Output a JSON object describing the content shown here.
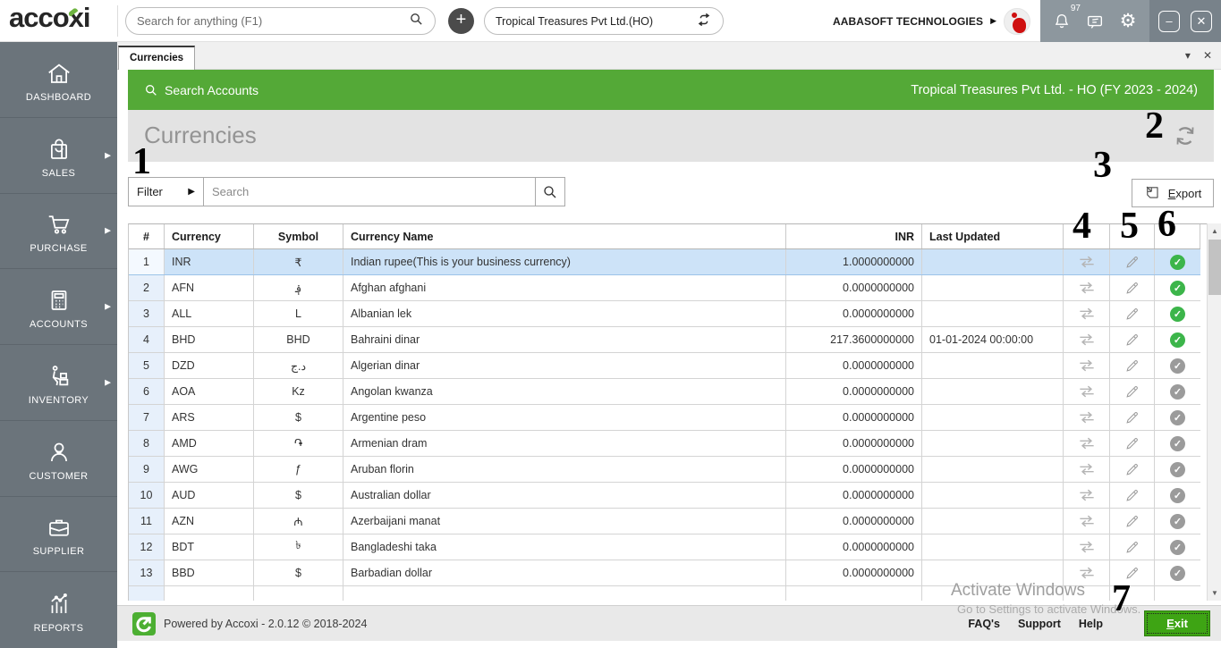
{
  "topbar": {
    "logo": "accoxi",
    "search_placeholder": "Search for anything (F1)",
    "add_label": "+",
    "company_selector": "Tropical Treasures Pvt Ltd.(HO)",
    "org_name": "AABASOFT TECHNOLOGIES",
    "notification_count": "97",
    "minimize_label": "–",
    "close_label": "✕"
  },
  "sidebar": {
    "items": [
      {
        "label": "DASHBOARD",
        "icon": "home-icon",
        "arrow": false
      },
      {
        "label": "SALES",
        "icon": "sales-bag-icon",
        "arrow": true
      },
      {
        "label": "PURCHASE",
        "icon": "purchase-cart-icon",
        "arrow": true
      },
      {
        "label": "ACCOUNTS",
        "icon": "accounts-calculator-icon",
        "arrow": true
      },
      {
        "label": "INVENTORY",
        "icon": "inventory-trolley-icon",
        "arrow": true
      },
      {
        "label": "CUSTOMER",
        "icon": "customer-person-icon",
        "arrow": false
      },
      {
        "label": "SUPPLIER",
        "icon": "supplier-briefcase-icon",
        "arrow": false
      },
      {
        "label": "REPORTS",
        "icon": "reports-chart-icon",
        "arrow": false
      }
    ]
  },
  "tabbar": {
    "active_tab": "Currencies",
    "dropdown_icon": "▾",
    "close_icon": "✕"
  },
  "accounts_bar": {
    "search_label": "Search Accounts",
    "company_label": "Tropical Treasures Pvt Ltd. - HO (FY 2023 - 2024)"
  },
  "page": {
    "title": "Currencies"
  },
  "toolbar": {
    "filter_label": "Filter",
    "filter_arrow": "▶",
    "search_placeholder": "Search",
    "export_label": "Export"
  },
  "table": {
    "headers": {
      "num": "#",
      "code": "Currency",
      "sym": "Symbol",
      "name": "Currency Name",
      "inr": "INR",
      "upd": "Last Updated"
    },
    "rows": [
      {
        "num": "1",
        "code": "INR",
        "sym": "₹",
        "name": "Indian rupee(This is your business currency)",
        "inr": "1.0000000000",
        "upd": "",
        "active": true,
        "selected": true
      },
      {
        "num": "2",
        "code": "AFN",
        "sym": "؋",
        "name": "Afghan afghani",
        "inr": "0.0000000000",
        "upd": "",
        "active": true,
        "selected": false
      },
      {
        "num": "3",
        "code": "ALL",
        "sym": "L",
        "name": "Albanian lek",
        "inr": "0.0000000000",
        "upd": "",
        "active": true,
        "selected": false
      },
      {
        "num": "4",
        "code": "BHD",
        "sym": "BHD",
        "name": "Bahraini dinar",
        "inr": "217.3600000000",
        "upd": "01-01-2024 00:00:00",
        "active": true,
        "selected": false
      },
      {
        "num": "5",
        "code": "DZD",
        "sym": "د.ج",
        "name": "Algerian dinar",
        "inr": "0.0000000000",
        "upd": "",
        "active": false,
        "selected": false
      },
      {
        "num": "6",
        "code": "AOA",
        "sym": "Kz",
        "name": "Angolan kwanza",
        "inr": "0.0000000000",
        "upd": "",
        "active": false,
        "selected": false
      },
      {
        "num": "7",
        "code": "ARS",
        "sym": "$",
        "name": "Argentine peso",
        "inr": "0.0000000000",
        "upd": "",
        "active": false,
        "selected": false
      },
      {
        "num": "8",
        "code": "AMD",
        "sym": "֏",
        "name": "Armenian dram",
        "inr": "0.0000000000",
        "upd": "",
        "active": false,
        "selected": false
      },
      {
        "num": "9",
        "code": "AWG",
        "sym": "ƒ",
        "name": "Aruban florin",
        "inr": "0.0000000000",
        "upd": "",
        "active": false,
        "selected": false
      },
      {
        "num": "10",
        "code": "AUD",
        "sym": "$",
        "name": "Australian dollar",
        "inr": "0.0000000000",
        "upd": "",
        "active": false,
        "selected": false
      },
      {
        "num": "11",
        "code": "AZN",
        "sym": "₼",
        "name": "Azerbaijani manat",
        "inr": "0.0000000000",
        "upd": "",
        "active": false,
        "selected": false
      },
      {
        "num": "12",
        "code": "BDT",
        "sym": "৳",
        "name": "Bangladeshi taka",
        "inr": "0.0000000000",
        "upd": "",
        "active": false,
        "selected": false
      },
      {
        "num": "13",
        "code": "BBD",
        "sym": "$",
        "name": "Barbadian dollar",
        "inr": "0.0000000000",
        "upd": "",
        "active": false,
        "selected": false
      }
    ],
    "row_icons": [
      "exchange-rate-icon",
      "edit-pencil-icon",
      "status-check-icon"
    ]
  },
  "scrollbar": {
    "up_icon": "▲",
    "down_icon": "▼"
  },
  "watermark": {
    "line1": "Activate Windows",
    "line2": "Go to Settings to activate Windows."
  },
  "annotations": {
    "labels": [
      "1",
      "2",
      "3",
      "4",
      "5",
      "6",
      "7"
    ]
  },
  "footer": {
    "powered": "Powered by Accoxi - 2.0.12 © 2018-2024",
    "links": [
      "FAQ's",
      "Support",
      "Help"
    ],
    "exit_label": "Exit"
  },
  "colors": {
    "accent_green": "#54a937",
    "exit_green": "#3ea414",
    "check_active": "#3cb54a",
    "check_inactive": "#9b9b9b",
    "selected_row": "#cde3f8",
    "sidebar_gray": "#6b747b",
    "avatar_red": "#cf1010"
  }
}
